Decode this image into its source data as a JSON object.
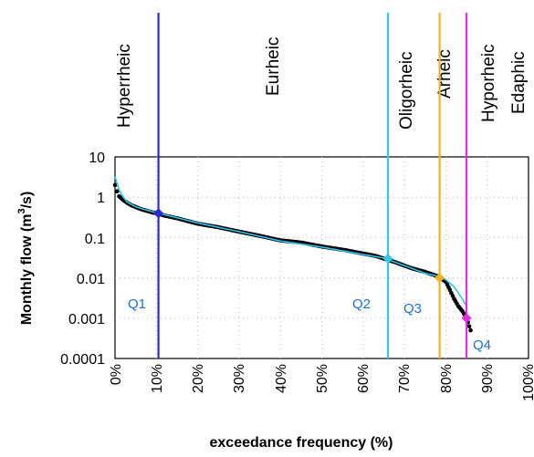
{
  "chart_data": {
    "type": "line",
    "title": "",
    "xlabel": "exceedance frequency (%)",
    "ylabel_main": "Monthly flow (m",
    "ylabel_sup": "3",
    "ylabel_end": "/s)",
    "x_scale": "linear",
    "y_scale": "log",
    "xlim": [
      0,
      100
    ],
    "ylim": [
      0.0001,
      10
    ],
    "grid": "dotted",
    "x_ticks": [
      {
        "value": 0,
        "label": "0%"
      },
      {
        "value": 10,
        "label": "10%"
      },
      {
        "value": 20,
        "label": "20%"
      },
      {
        "value": 30,
        "label": "30%"
      },
      {
        "value": 40,
        "label": "40%"
      },
      {
        "value": 50,
        "label": "50%"
      },
      {
        "value": 60,
        "label": "60%"
      },
      {
        "value": 70,
        "label": "70%"
      },
      {
        "value": 80,
        "label": "80%"
      },
      {
        "value": 90,
        "label": "90%"
      },
      {
        "value": 100,
        "label": "100%"
      }
    ],
    "y_ticks": [
      {
        "value": 10,
        "label": "10"
      },
      {
        "value": 1,
        "label": "1"
      },
      {
        "value": 0.1,
        "label": "0.1"
      },
      {
        "value": 0.01,
        "label": "0.01"
      },
      {
        "value": 0.001,
        "label": "0.001"
      },
      {
        "value": 0.0001,
        "label": "0.0001"
      }
    ],
    "series": [
      {
        "color": "#000000",
        "style": "dots",
        "points": [
          [
            0,
            2.0
          ],
          [
            0.5,
            1.4
          ],
          [
            1,
            1.05
          ],
          [
            2,
            0.85
          ],
          [
            3,
            0.72
          ],
          [
            4,
            0.63
          ],
          [
            5,
            0.57
          ],
          [
            6,
            0.52
          ],
          [
            7,
            0.48
          ],
          [
            8,
            0.45
          ],
          [
            9,
            0.42
          ],
          [
            10,
            0.4
          ],
          [
            12,
            0.35
          ],
          [
            15,
            0.3
          ],
          [
            20,
            0.22
          ],
          [
            25,
            0.18
          ],
          [
            30,
            0.14
          ],
          [
            35,
            0.11
          ],
          [
            40,
            0.085
          ],
          [
            45,
            0.075
          ],
          [
            50,
            0.06
          ],
          [
            55,
            0.05
          ],
          [
            60,
            0.04
          ],
          [
            63,
            0.035
          ],
          [
            65,
            0.03
          ],
          [
            68,
            0.024
          ],
          [
            70,
            0.02
          ],
          [
            72,
            0.017
          ],
          [
            75,
            0.014
          ],
          [
            78,
            0.011
          ],
          [
            80,
            0.008
          ],
          [
            81,
            0.005
          ],
          [
            82,
            0.003
          ],
          [
            83,
            0.002
          ],
          [
            84,
            0.0015
          ],
          [
            85,
            0.001
          ],
          [
            86,
            0.0005
          ]
        ]
      },
      {
        "color": "#2ec4f0",
        "style": "line",
        "points": [
          [
            0,
            3.2
          ],
          [
            0.5,
            2.2
          ],
          [
            1,
            1.5
          ],
          [
            2,
            1.0
          ],
          [
            3,
            0.75
          ],
          [
            5,
            0.58
          ],
          [
            7,
            0.5
          ],
          [
            9,
            0.44
          ],
          [
            10,
            0.41
          ],
          [
            15,
            0.31
          ],
          [
            20,
            0.23
          ],
          [
            30,
            0.14
          ],
          [
            40,
            0.082
          ],
          [
            50,
            0.058
          ],
          [
            60,
            0.038
          ],
          [
            65,
            0.031
          ],
          [
            70,
            0.02
          ],
          [
            75,
            0.013
          ],
          [
            78,
            0.011
          ],
          [
            80,
            0.009
          ],
          [
            82,
            0.006
          ],
          [
            84,
            0.003
          ],
          [
            85,
            0.002
          ]
        ]
      }
    ],
    "thresholds": [
      {
        "label": "Q1",
        "x": 10.5,
        "y": 0.4,
        "color": "#2a2ad6",
        "label_color": "#1f6fd1"
      },
      {
        "label": "Q2",
        "x": 66,
        "y": 0.03,
        "color": "#35c8ec",
        "label_color": "#1f6fd1"
      },
      {
        "label": "Q3",
        "x": 78.5,
        "y": 0.01,
        "color": "#f5b21a",
        "label_color": "#1f6fd1"
      },
      {
        "label": "Q4",
        "x": 85,
        "y": 0.001,
        "color": "#e52ee0",
        "label_color": "#1f6fd1"
      }
    ],
    "regimes": [
      "Hyperrheic",
      "Eurheic",
      "Oligorheic",
      "Arheic",
      "Hyporheic",
      "Edaphic"
    ]
  }
}
